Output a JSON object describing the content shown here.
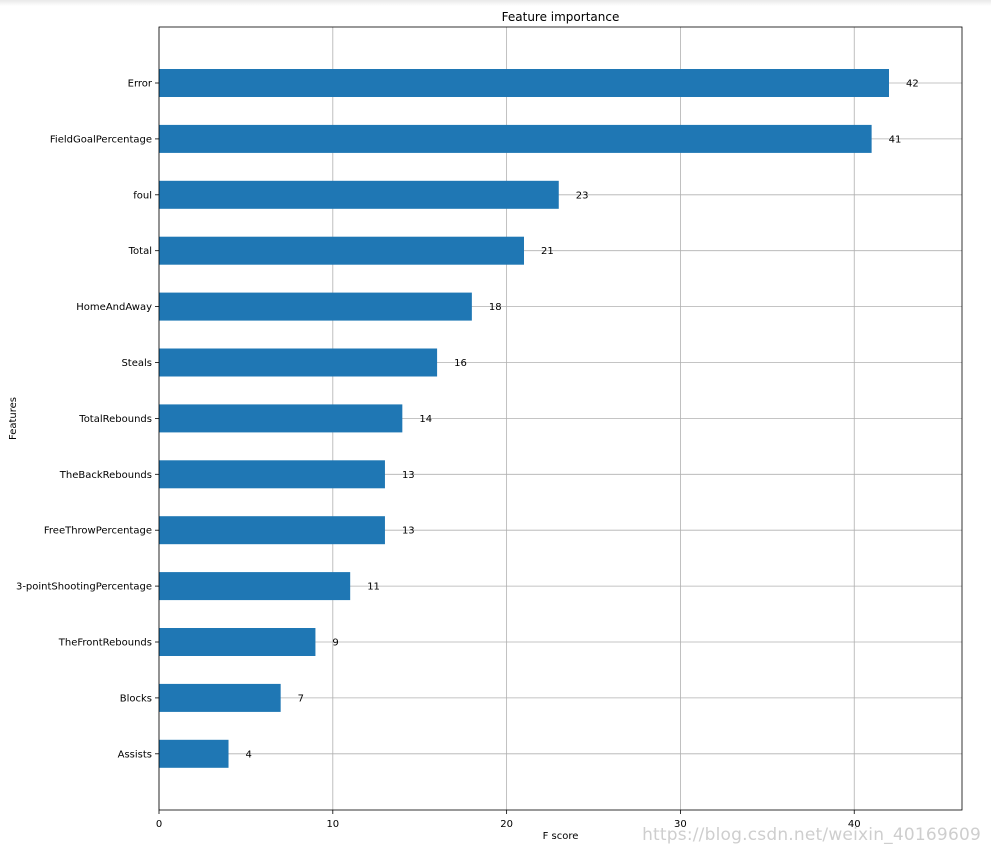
{
  "chart_data": {
    "type": "bar",
    "orientation": "horizontal",
    "title": "Feature importance",
    "xlabel": "F score",
    "ylabel": "Features",
    "categories": [
      "Error",
      "FieldGoalPercentage",
      "foul",
      "Total",
      "HomeAndAway",
      "Steals",
      "TotalRebounds",
      "TheBackRebounds",
      "FreeThrowPercentage",
      "3-pointShootingPercentage",
      "TheFrontRebounds",
      "Blocks",
      "Assists"
    ],
    "values": [
      42,
      41,
      23,
      21,
      18,
      16,
      14,
      13,
      13,
      11,
      9,
      7,
      4
    ],
    "value_labels": [
      "42",
      "41",
      "23",
      "21",
      "18",
      "16",
      "14",
      "13",
      "13",
      "11",
      "9",
      "7",
      "4"
    ],
    "xlim": [
      0,
      46.2
    ],
    "xticks": [
      0,
      10,
      20,
      30,
      40
    ],
    "xtick_labels": [
      "0",
      "10",
      "20",
      "30",
      "40"
    ],
    "grid": true,
    "bar_color": "#1f77b4",
    "grid_color": "#b0b0b0"
  },
  "watermark": "https://blog.csdn.net/weixin_40169609"
}
